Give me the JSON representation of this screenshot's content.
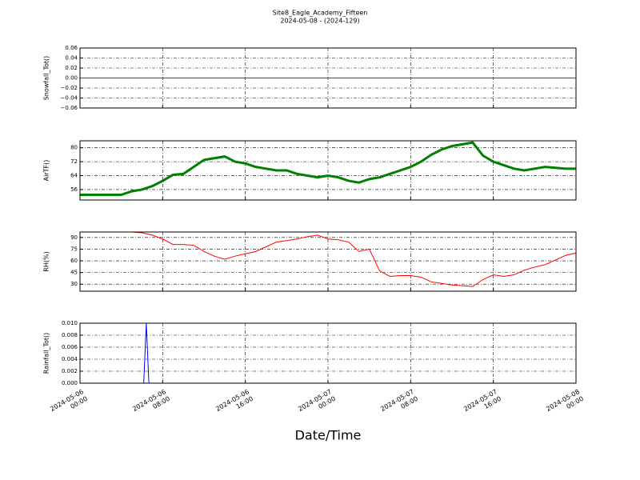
{
  "chart_data": [
    {
      "type": "line",
      "title": "Site8_Eagle_Academy_Fifteen",
      "subtitle": "2024-05-08 - (2024-129)",
      "y_label": "Snowfall_Tot()",
      "ylim": [
        -0.06,
        0.06
      ],
      "yticks": [
        {
          "value": -0.06,
          "label": "−0.06"
        },
        {
          "value": -0.04,
          "label": "−0.04"
        },
        {
          "value": -0.02,
          "label": "−0.02"
        },
        {
          "value": 0,
          "label": "0.00"
        },
        0.02,
        0.04,
        0.06
      ],
      "grid": true,
      "x": [
        "2024-05-06 00:00",
        "2024-05-08 00:00"
      ],
      "series": [
        {
          "name": "Snowfall_Tot",
          "color": "#ff0000",
          "values": [
            0,
            0
          ]
        }
      ]
    },
    {
      "type": "line",
      "y_label": "AirTF()",
      "ylim": [
        50,
        84
      ],
      "yticks": [
        56,
        64,
        72,
        80
      ],
      "grid": true,
      "x": [
        "2024-05-06 00:00",
        "2024-05-06 01:00",
        "2024-05-06 02:00",
        "2024-05-06 03:00",
        "2024-05-06 04:00",
        "2024-05-06 05:00",
        "2024-05-06 06:00",
        "2024-05-06 07:00",
        "2024-05-06 08:00",
        "2024-05-06 09:00",
        "2024-05-06 10:00",
        "2024-05-06 11:00",
        "2024-05-06 12:00",
        "2024-05-06 13:00",
        "2024-05-06 14:00",
        "2024-05-06 15:00",
        "2024-05-06 16:00",
        "2024-05-06 17:00",
        "2024-05-06 18:00",
        "2024-05-06 19:00",
        "2024-05-06 20:00",
        "2024-05-06 21:00",
        "2024-05-06 22:00",
        "2024-05-06 23:00",
        "2024-05-07 00:00",
        "2024-05-07 01:00",
        "2024-05-07 02:00",
        "2024-05-07 03:00",
        "2024-05-07 04:00",
        "2024-05-07 05:00",
        "2024-05-07 06:00",
        "2024-05-07 07:00",
        "2024-05-07 08:00",
        "2024-05-07 09:00",
        "2024-05-07 10:00",
        "2024-05-07 11:00",
        "2024-05-07 12:00",
        "2024-05-07 13:00",
        "2024-05-07 14:00",
        "2024-05-07 15:00",
        "2024-05-07 16:00",
        "2024-05-07 17:00",
        "2024-05-07 18:00",
        "2024-05-07 19:00",
        "2024-05-07 20:00",
        "2024-05-07 21:00",
        "2024-05-07 22:00",
        "2024-05-07 23:00",
        "2024-05-08 00:00"
      ],
      "series": [
        {
          "name": "AirTF",
          "color": "#008000",
          "values": [
            53,
            53,
            53,
            53,
            53,
            55,
            56,
            58,
            61,
            64.5,
            65,
            69,
            73,
            74,
            75,
            72,
            71,
            69,
            68,
            67,
            67,
            65,
            64,
            63,
            64,
            63,
            61,
            60,
            62,
            63,
            65,
            67,
            69,
            72,
            76,
            79,
            81,
            82,
            83,
            75.5,
            72,
            70,
            68,
            67,
            68,
            69,
            68.5,
            68,
            68
          ]
        }
      ]
    },
    {
      "type": "line",
      "y_label": "RH(%)",
      "ylim": [
        21,
        97
      ],
      "yticks": [
        30,
        45,
        60,
        75,
        90
      ],
      "grid": true,
      "x": [
        "2024-05-06 00:00",
        "2024-05-06 01:00",
        "2024-05-06 02:00",
        "2024-05-06 03:00",
        "2024-05-06 04:00",
        "2024-05-06 05:00",
        "2024-05-06 06:00",
        "2024-05-06 07:00",
        "2024-05-06 08:00",
        "2024-05-06 09:00",
        "2024-05-06 10:00",
        "2024-05-06 11:00",
        "2024-05-06 12:00",
        "2024-05-06 13:00",
        "2024-05-06 14:00",
        "2024-05-06 15:00",
        "2024-05-06 16:00",
        "2024-05-06 17:00",
        "2024-05-06 18:00",
        "2024-05-06 19:00",
        "2024-05-06 20:00",
        "2024-05-06 21:00",
        "2024-05-06 22:00",
        "2024-05-06 23:00",
        "2024-05-07 00:00",
        "2024-05-07 01:00",
        "2024-05-07 02:00",
        "2024-05-07 03:00",
        "2024-05-07 04:00",
        "2024-05-07 05:00",
        "2024-05-07 06:00",
        "2024-05-07 07:00",
        "2024-05-07 08:00",
        "2024-05-07 09:00",
        "2024-05-07 10:00",
        "2024-05-07 11:00",
        "2024-05-07 12:00",
        "2024-05-07 13:00",
        "2024-05-07 14:00",
        "2024-05-07 15:00",
        "2024-05-07 16:00",
        "2024-05-07 17:00",
        "2024-05-07 18:00",
        "2024-05-07 19:00",
        "2024-05-07 20:00",
        "2024-05-07 21:00",
        "2024-05-07 22:00",
        "2024-05-07 23:00",
        "2024-05-08 00:00"
      ],
      "series": [
        {
          "name": "RH",
          "color": "#ff0000",
          "values": [
            97,
            97,
            97,
            97,
            97,
            97,
            96,
            93,
            88,
            81,
            81,
            80,
            72,
            66,
            62,
            66,
            69,
            72,
            78,
            84,
            86,
            88,
            91,
            93,
            88,
            87,
            84,
            72,
            75,
            47,
            40,
            41,
            41,
            39,
            33,
            31,
            29,
            28,
            27,
            36,
            42,
            40,
            42,
            48,
            52,
            55,
            61,
            67,
            70
          ]
        }
      ]
    },
    {
      "type": "line",
      "y_label": "Rainfall_Tot()",
      "x_label": "Date/Time",
      "ylim": [
        0,
        0.01
      ],
      "yticks": [
        {
          "value": 0,
          "label": "0.000"
        },
        0.002,
        0.004,
        0.006,
        0.008,
        {
          "value": 0.01,
          "label": "0.010"
        }
      ],
      "grid": true,
      "xlim": [
        "2024-05-06 00:00",
        "2024-05-08 00:00"
      ],
      "xticks": [
        {
          "value": "2024-05-06 00:00",
          "label": "2024-05-06\n00:00"
        },
        {
          "value": "2024-05-06 08:00",
          "label": "2024-05-06\n08:00"
        },
        {
          "value": "2024-05-06 16:00",
          "label": "2024-05-06\n16:00"
        },
        {
          "value": "2024-05-07 00:00",
          "label": "2024-05-07\n00:00"
        },
        {
          "value": "2024-05-07 08:00",
          "label": "2024-05-07\n08:00"
        },
        {
          "value": "2024-05-07 16:00",
          "label": "2024-05-07\n16:00"
        },
        {
          "value": "2024-05-08 00:00",
          "label": "2024-05-08\n00:00"
        }
      ],
      "x": [
        "2024-05-06 00:00",
        "2024-05-06 06:10",
        "2024-05-06 06:25",
        "2024-05-06 06:40",
        "2024-05-08 00:00"
      ],
      "series": [
        {
          "name": "Rainfall_Tot",
          "color": "#0000ff",
          "values": [
            0,
            0,
            0.01,
            0,
            0
          ]
        }
      ]
    }
  ]
}
